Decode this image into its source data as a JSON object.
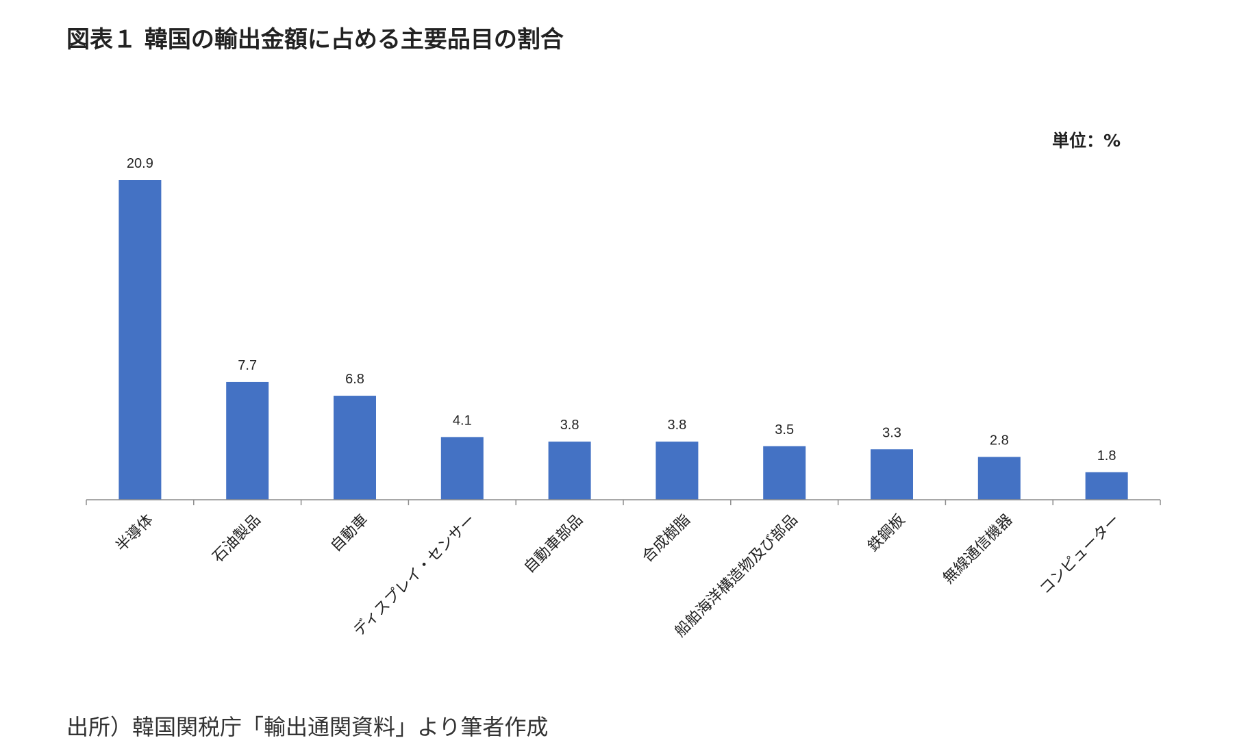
{
  "header": {
    "title": "図表１ 韓国の輸出金額に占める主要品目の割合"
  },
  "unit_label": "単位：%",
  "source_note": "出所）韓国関税庁「輸出通関資料」より筆者作成",
  "colors": {
    "bar": "#4472c4",
    "axis": "#8c8c8c"
  },
  "chart_data": {
    "type": "bar",
    "title": "図表１ 韓国の輸出金額に占める主要品目の割合",
    "xlabel": "",
    "ylabel": "",
    "unit": "単位：%",
    "categories": [
      "半導体",
      "石油製品",
      "自動車",
      "ディスプレイ・センサー",
      "自動車部品",
      "合成樹脂",
      "船舶海洋構造物及び部品",
      "鉄鋼板",
      "無線通信機器",
      "コンピューター"
    ],
    "values": [
      20.9,
      7.7,
      6.8,
      4.1,
      3.8,
      3.8,
      3.5,
      3.3,
      2.8,
      1.8
    ],
    "value_labels": [
      "20.9",
      "7.7",
      "6.8",
      "4.1",
      "3.8",
      "3.8",
      "3.5",
      "3.3",
      "2.8",
      "1.8"
    ],
    "ylim": [
      0,
      20.9
    ],
    "grid": false,
    "legend": "none",
    "data_labels": true
  }
}
